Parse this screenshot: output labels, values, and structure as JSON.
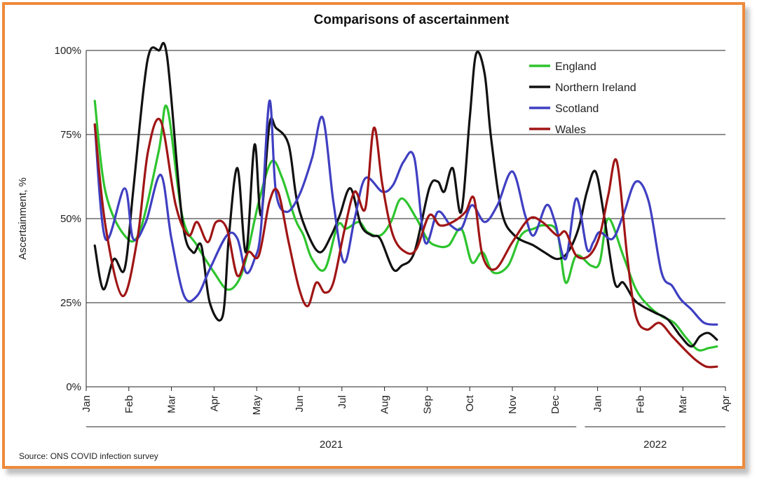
{
  "chart_data": {
    "type": "line",
    "title": "Comparisons of ascertainment",
    "ylabel": "Ascertainment, %",
    "xlabel": "",
    "ylim": [
      0,
      100
    ],
    "yticks": [
      0,
      25,
      50,
      75,
      100
    ],
    "ytick_labels": [
      "0%",
      "25%",
      "50%",
      "75%",
      "100%"
    ],
    "x_unit": "months since Jan 2021",
    "xlim": [
      0,
      15
    ],
    "xticks": [
      0,
      1,
      2,
      3,
      4,
      5,
      6,
      7,
      8,
      9,
      10,
      11,
      12,
      13,
      14,
      15
    ],
    "xtick_labels": [
      "Jan",
      "Feb",
      "Mar",
      "Apr",
      "May",
      "Jun",
      "Jul",
      "Aug",
      "Sep",
      "Oct",
      "Nov",
      "Dec",
      "Jan",
      "Feb",
      "Mar",
      "Apr"
    ],
    "year_groups": [
      {
        "label": "2021",
        "from": 0,
        "to": 11.5
      },
      {
        "label": "2022",
        "from": 11.7,
        "to": 15
      }
    ],
    "legend_position": "top-right",
    "grid": "horizontal",
    "series": [
      {
        "name": "England",
        "color": "#2ec42e",
        "x": [
          0.2,
          0.45,
          0.9,
          1.25,
          1.7,
          1.9,
          2.25,
          2.6,
          3.0,
          3.3,
          3.55,
          3.75,
          4.05,
          4.35,
          4.6,
          4.9,
          5.1,
          5.3,
          5.6,
          5.9,
          6.1,
          6.4,
          6.6,
          6.9,
          7.15,
          7.4,
          7.75,
          8.0,
          8.2,
          8.5,
          8.8,
          9.05,
          9.3,
          9.55,
          9.9,
          10.2,
          10.5,
          10.75,
          11.05,
          11.25,
          11.5,
          11.85,
          12.05,
          12.25,
          12.6,
          12.9,
          13.2,
          13.5,
          13.8,
          14.05,
          14.35,
          14.6,
          14.8
        ],
        "values": [
          85,
          58,
          45,
          46,
          70,
          83,
          51,
          42,
          34,
          29,
          31,
          38,
          55,
          67,
          62,
          50,
          45,
          38,
          35,
          48,
          47,
          49,
          46,
          45,
          49,
          56,
          50,
          44,
          42,
          42,
          47,
          37,
          40,
          34,
          36,
          45,
          47,
          48,
          46,
          31,
          39,
          36,
          37,
          50,
          39,
          29,
          24,
          21,
          19,
          15,
          11,
          11.5,
          12
        ]
      },
      {
        "name": "Northern Ireland",
        "color": "#111111",
        "x": [
          0.2,
          0.4,
          0.65,
          0.9,
          1.1,
          1.35,
          1.5,
          1.7,
          1.9,
          2.25,
          2.5,
          2.7,
          2.9,
          3.2,
          3.35,
          3.55,
          3.75,
          3.95,
          4.1,
          4.3,
          4.45,
          4.75,
          4.95,
          5.25,
          5.5,
          5.75,
          5.95,
          6.2,
          6.45,
          6.7,
          6.9,
          7.2,
          7.4,
          7.7,
          8.05,
          8.25,
          8.4,
          8.6,
          8.8,
          9.0,
          9.15,
          9.35,
          9.5,
          9.75,
          10.05,
          10.5,
          10.75,
          11.05,
          11.3,
          11.55,
          11.75,
          11.95,
          12.15,
          12.4,
          12.6,
          12.85,
          13.05,
          13.35,
          13.65,
          13.95,
          14.2,
          14.4,
          14.6,
          14.8
        ],
        "values": [
          42,
          29,
          38,
          35,
          58,
          89,
          100,
          100,
          98,
          50,
          40,
          42,
          25,
          21,
          45,
          65,
          40,
          72,
          51,
          78,
          77,
          72,
          55,
          44,
          40,
          45,
          51,
          59,
          48,
          45,
          44,
          35,
          36,
          40,
          59,
          61,
          58,
          65,
          52,
          80,
          99,
          93,
          74,
          52,
          45,
          42,
          40,
          38,
          40,
          47,
          58,
          64,
          51,
          31,
          31,
          26,
          24,
          22,
          20,
          15,
          12,
          15,
          16,
          14
        ]
      },
      {
        "name": "Scotland",
        "color": "#3f3fc2",
        "x": [
          0.2,
          0.45,
          0.9,
          1.1,
          1.4,
          1.75,
          2.0,
          2.3,
          2.6,
          2.9,
          3.3,
          3.55,
          3.75,
          3.95,
          4.1,
          4.3,
          4.45,
          4.7,
          5.0,
          5.3,
          5.55,
          5.8,
          6.05,
          6.3,
          6.55,
          6.95,
          7.2,
          7.45,
          7.7,
          7.95,
          8.25,
          8.55,
          8.8,
          9.05,
          9.35,
          9.65,
          10.0,
          10.3,
          10.5,
          10.8,
          11.0,
          11.25,
          11.5,
          11.75,
          11.9,
          12.05,
          12.35,
          12.6,
          12.9,
          13.2,
          13.5,
          13.75,
          13.95,
          14.2,
          14.5,
          14.8
        ],
        "values": [
          78,
          44,
          59,
          44,
          49,
          63,
          44,
          27,
          27,
          35,
          45,
          44,
          34,
          38,
          47,
          85,
          58,
          52,
          57,
          68,
          80,
          55,
          37,
          50,
          62,
          58,
          60,
          67,
          68,
          43,
          52,
          48,
          47,
          54,
          49,
          54,
          64,
          51,
          45,
          54,
          49,
          38,
          56,
          41,
          43,
          46,
          44,
          51,
          61,
          55,
          34,
          30,
          26,
          23,
          19,
          18.5
        ]
      },
      {
        "name": "Wales",
        "color": "#a01515",
        "x": [
          0.2,
          0.45,
          0.85,
          1.2,
          1.45,
          1.75,
          2.1,
          2.4,
          2.6,
          2.85,
          3.05,
          3.3,
          3.55,
          3.8,
          4.05,
          4.3,
          4.5,
          4.75,
          5.0,
          5.2,
          5.4,
          5.6,
          5.8,
          6.05,
          6.3,
          6.55,
          6.75,
          6.95,
          7.2,
          7.5,
          7.75,
          8.05,
          8.3,
          8.6,
          8.9,
          9.1,
          9.3,
          9.6,
          10.0,
          10.4,
          10.7,
          11.05,
          11.25,
          11.5,
          11.8,
          12.05,
          12.25,
          12.45,
          12.7,
          12.9,
          13.15,
          13.45,
          13.75,
          14.05,
          14.3,
          14.55,
          14.8
        ],
        "values": [
          78,
          48,
          27,
          44,
          70,
          79,
          54,
          45,
          49,
          43,
          49,
          47,
          33,
          40,
          39,
          55,
          58,
          43,
          29,
          24,
          31,
          28,
          31,
          46,
          58,
          53,
          77,
          60,
          45,
          40,
          41,
          51,
          48,
          49,
          52,
          56,
          39,
          35,
          43,
          50,
          49,
          45,
          46,
          39,
          39,
          45,
          57,
          67,
          38,
          21,
          17,
          19,
          15,
          11,
          8,
          6,
          6
        ]
      }
    ],
    "source": "Source: ONS COVID infection survey"
  }
}
